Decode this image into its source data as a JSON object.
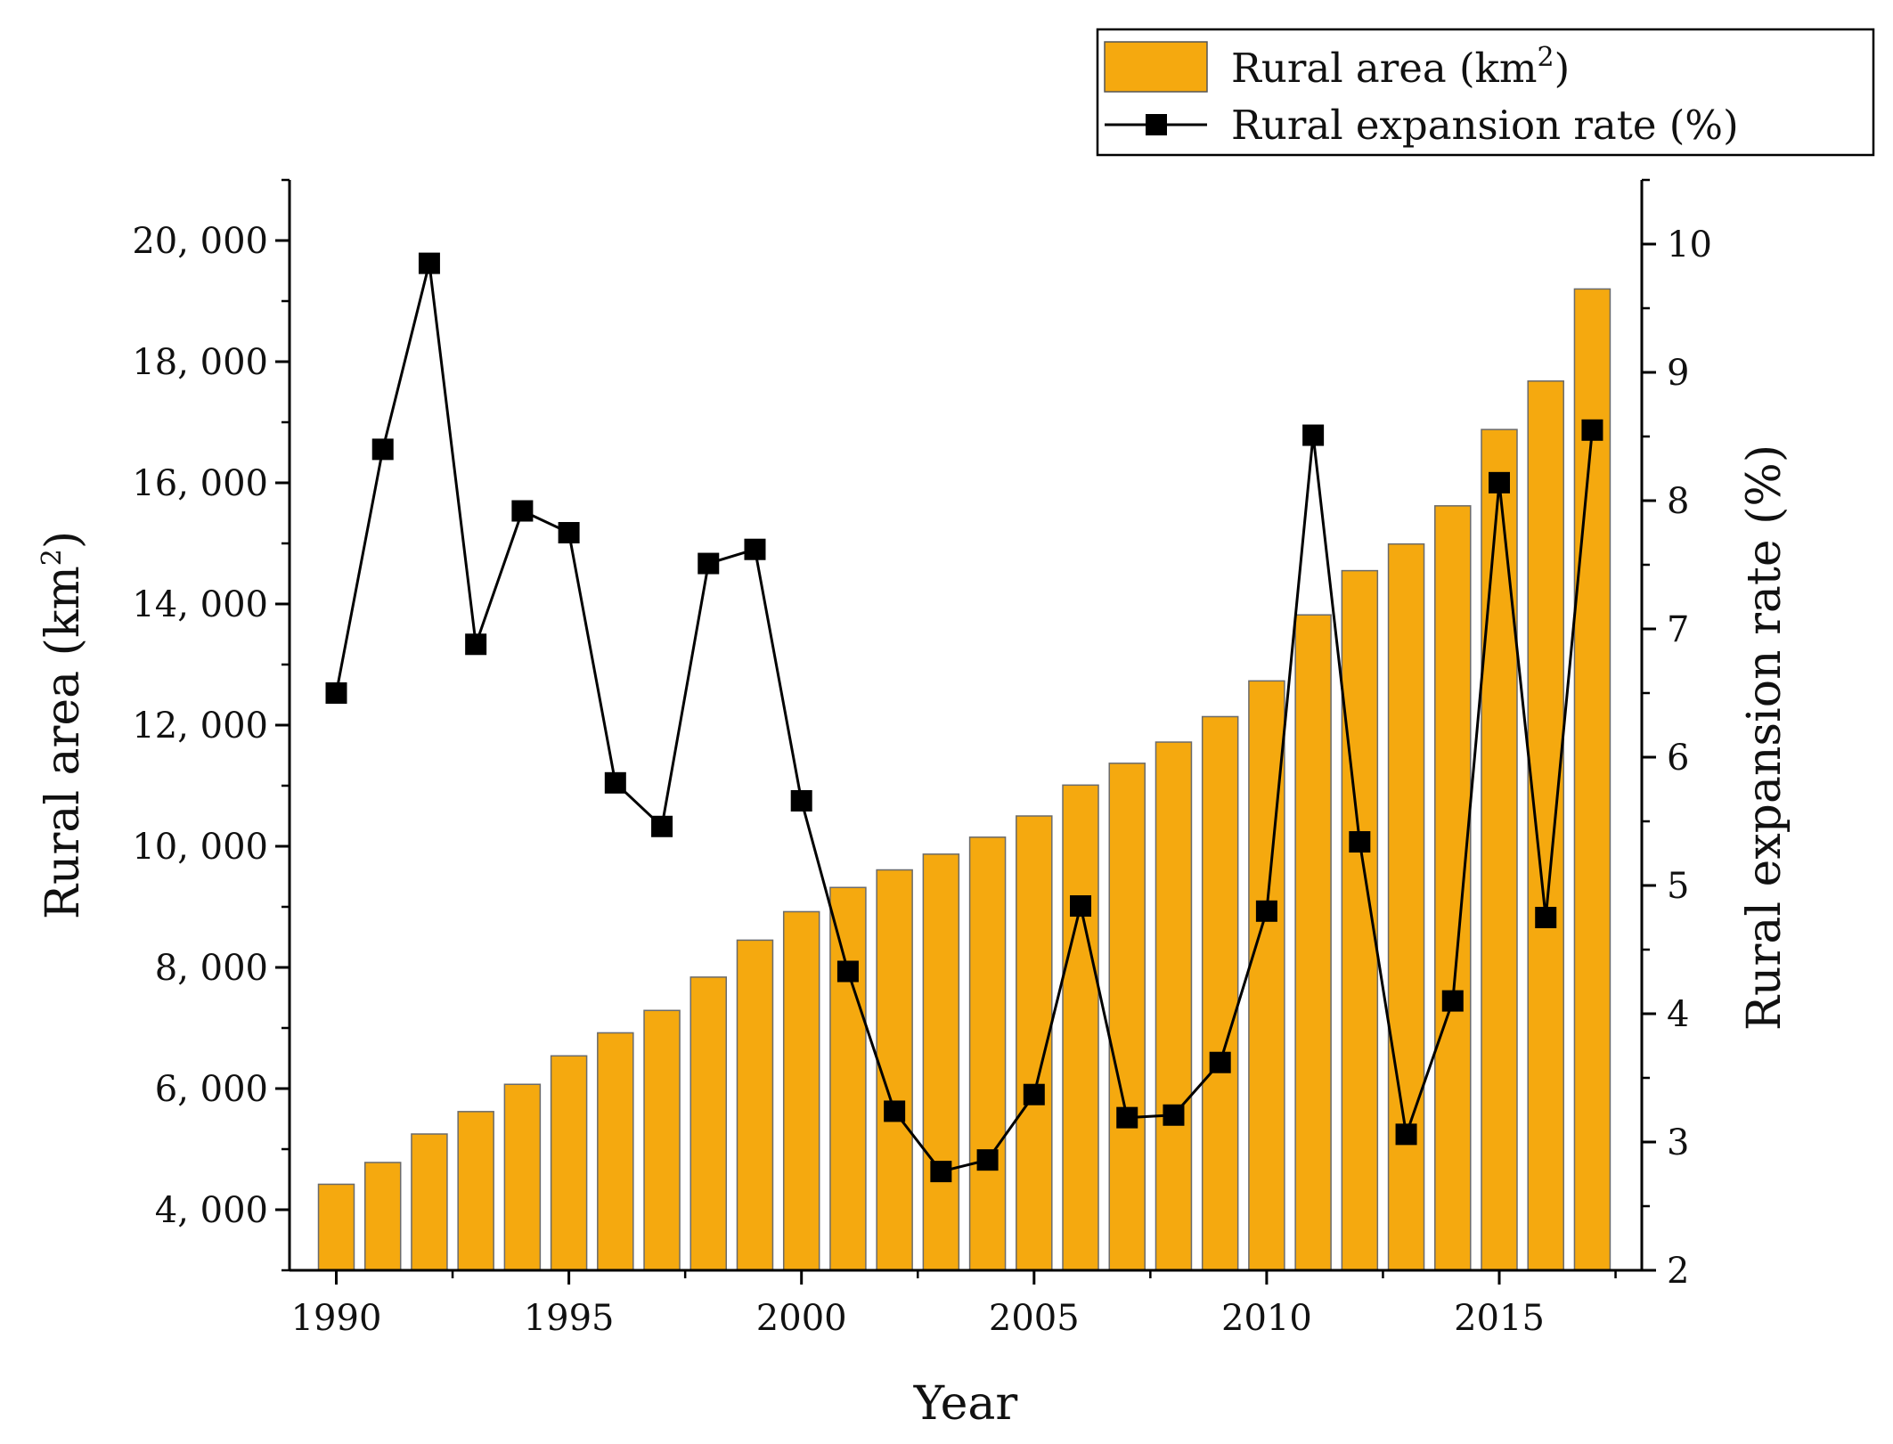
{
  "chart_data": {
    "type": "bar+line",
    "xlabel": "Year",
    "x_ticks": [
      "1990",
      "1995",
      "2000",
      "2005",
      "2010",
      "2015"
    ],
    "years": [
      1990,
      1991,
      1992,
      1993,
      1994,
      1995,
      1996,
      1997,
      1998,
      1999,
      2000,
      2001,
      2002,
      2003,
      2004,
      2005,
      2006,
      2007,
      2008,
      2009,
      2010,
      2011,
      2012,
      2013,
      2014,
      2015,
      2016,
      2017
    ],
    "left_axis": {
      "label_main": "Rural area (km",
      "label_sup": "2",
      "label_tail": ")",
      "ylim": [
        3000,
        21000
      ],
      "ticks": [
        4000,
        6000,
        8000,
        10000,
        12000,
        14000,
        16000,
        18000,
        20000
      ],
      "tick_labels": [
        "4, 000",
        "6, 000",
        "8, 000",
        "10, 000",
        "12, 000",
        "14, 000",
        "16, 000",
        "18, 000",
        "20, 000"
      ]
    },
    "right_axis": {
      "label": "Rural expansion rate (%)",
      "ylim": [
        2,
        10.5
      ],
      "ticks": [
        2,
        3,
        4,
        5,
        6,
        7,
        8,
        9,
        10
      ],
      "tick_labels": [
        "2",
        "3",
        "4",
        "5",
        "6",
        "7",
        "8",
        "9",
        "10"
      ]
    },
    "series": [
      {
        "name": "Rural area (km²)",
        "type": "bar",
        "axis": "left",
        "color": "#F5A90F",
        "values": [
          4420,
          4780,
          5250,
          5620,
          6070,
          6540,
          6920,
          7290,
          7840,
          8450,
          8920,
          9320,
          9610,
          9870,
          10150,
          10500,
          11010,
          11370,
          11720,
          12140,
          12730,
          13820,
          14550,
          14990,
          15620,
          16880,
          17680,
          19200
        ]
      },
      {
        "name": "Rural expansion rate (%)",
        "type": "line",
        "axis": "right",
        "color": "#000000",
        "marker": "square",
        "values": [
          6.5,
          8.4,
          9.85,
          6.88,
          7.92,
          7.75,
          5.8,
          5.46,
          7.51,
          7.62,
          5.66,
          4.33,
          3.24,
          2.77,
          2.86,
          3.37,
          4.84,
          3.19,
          3.21,
          3.62,
          4.8,
          8.51,
          5.34,
          3.06,
          4.1,
          8.14,
          4.75,
          8.55
        ]
      }
    ],
    "legend": {
      "position": "top-right",
      "entries": [
        {
          "main": "Rural area (km",
          "sup": "2",
          "tail": ")"
        },
        {
          "main": "Rural expansion rate (%)",
          "sup": "",
          "tail": ""
        }
      ]
    }
  }
}
